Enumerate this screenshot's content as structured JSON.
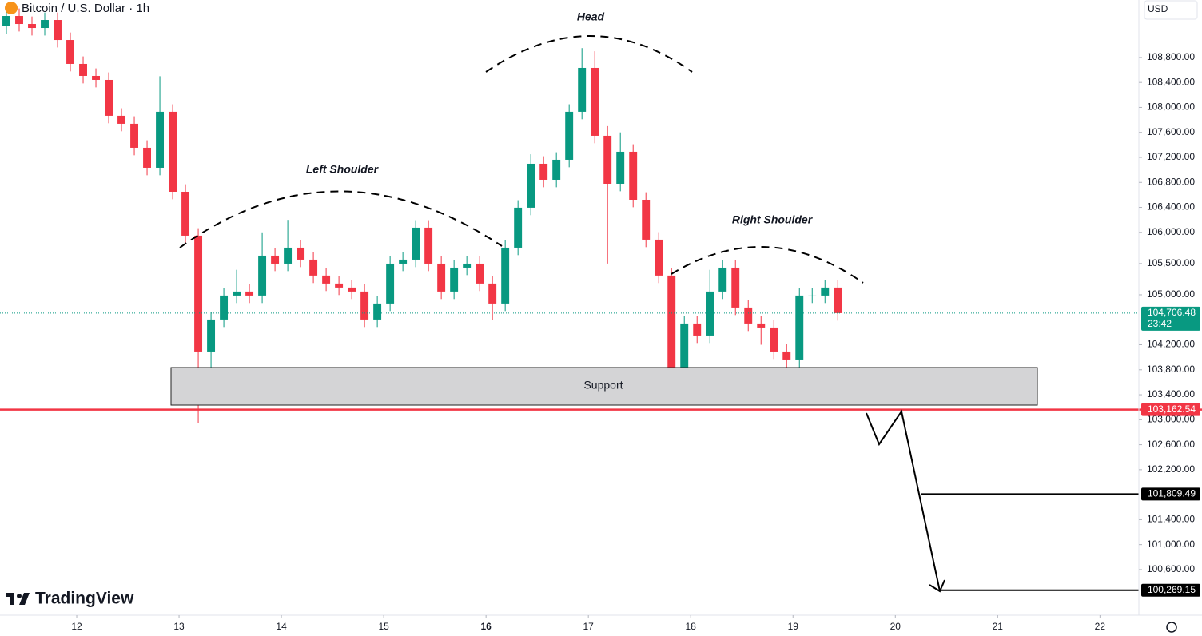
{
  "chart_data": {
    "type": "candlestick",
    "title": "Bitcoin / U.S. Dollar · 1h",
    "currency": "USD",
    "brand": "TradingView",
    "annotations": [
      "Left Shoulder",
      "Head",
      "Right Shoulder",
      "Support"
    ],
    "countdown": "23:42",
    "up_color": "#089981",
    "down_color": "#f23645",
    "x": [
      11.3125,
      11.4375,
      11.5625,
      11.6875,
      11.8125,
      11.9375,
      12.0625,
      12.1875,
      12.3125,
      12.4375,
      12.5625,
      12.6875,
      12.8125,
      12.9375,
      13.0625,
      13.1875,
      13.3125,
      13.4375,
      13.5625,
      13.6875,
      13.8125,
      13.9375,
      14.0625,
      14.1875,
      14.3125,
      14.4375,
      14.5625,
      14.6875,
      14.8125,
      14.9375,
      15.0625,
      15.1875,
      15.3125,
      15.4375,
      15.5625,
      15.6875,
      15.8125,
      15.9375,
      16.0625,
      16.1875,
      16.3125,
      16.4375,
      16.5625,
      16.6875,
      16.8125,
      16.9375,
      17.0625,
      17.1875,
      17.3125,
      17.4375,
      17.5625,
      17.6875,
      17.8125,
      17.9375,
      18.0625,
      18.1875,
      18.3125,
      18.4375,
      18.5625,
      18.6875,
      18.8125,
      18.9375,
      19.0625,
      19.1875,
      19.3125,
      19.4375
    ],
    "open": [
      109300,
      109464,
      109336,
      109272,
      109400,
      109080,
      108697,
      108505,
      108441,
      107866,
      107738,
      107354,
      107034,
      107930,
      106650,
      105947,
      104092,
      104604,
      104988,
      105052,
      104988,
      105627,
      105499,
      105755,
      105563,
      105308,
      105180,
      105116,
      105052,
      104604,
      104860,
      105499,
      105563,
      106075,
      105499,
      105052,
      105435,
      105499,
      105180,
      104860,
      105755,
      106395,
      107098,
      106842,
      107162,
      107930,
      108633,
      107546,
      106778,
      107290,
      106522,
      105883,
      105308,
      103837,
      104540,
      104348,
      105052,
      105435,
      104796,
      104540,
      104476,
      104092,
      103964,
      104988,
      104988,
      105116
    ],
    "high": [
      109584,
      109584,
      109456,
      109520,
      109520,
      109200,
      108817,
      108625,
      108561,
      107986,
      107858,
      107474,
      108500,
      108050,
      106770,
      106067,
      104724,
      105108,
      105400,
      105172,
      106000,
      105747,
      106200,
      105875,
      105683,
      105428,
      105300,
      105236,
      105172,
      104980,
      105619,
      105683,
      106195,
      106195,
      105619,
      105555,
      105619,
      105619,
      105300,
      105875,
      106515,
      107250,
      107218,
      107282,
      108050,
      108950,
      108900,
      107700,
      107600,
      107410,
      106642,
      106003,
      105428,
      104660,
      104660,
      105400,
      105555,
      105555,
      104916,
      104660,
      104596,
      104212,
      105108,
      105108,
      105236,
      105236
    ],
    "low": [
      109180,
      109216,
      109152,
      109152,
      108960,
      108577,
      108385,
      108321,
      107746,
      107618,
      107234,
      106914,
      106914,
      106530,
      105827,
      102940,
      103700,
      104484,
      104868,
      104868,
      104868,
      105379,
      105379,
      105443,
      105188,
      105060,
      104996,
      104932,
      104484,
      104484,
      104740,
      105379,
      105443,
      105379,
      104932,
      104932,
      105315,
      105060,
      104600,
      104740,
      105635,
      106275,
      106722,
      106722,
      107042,
      107810,
      107426,
      105500,
      106658,
      106402,
      105763,
      105188,
      103450,
      103717,
      104228,
      104228,
      104932,
      104676,
      104420,
      104200,
      103972,
      103550,
      103700,
      104868,
      104868,
      104586
    ],
    "close": [
      109464,
      109336,
      109272,
      109400,
      109080,
      108697,
      108505,
      108441,
      107866,
      107738,
      107354,
      107034,
      107930,
      106650,
      105947,
      104092,
      104604,
      104988,
      105052,
      104988,
      105627,
      105499,
      105755,
      105563,
      105308,
      105180,
      105116,
      105052,
      104604,
      104860,
      105499,
      105563,
      106075,
      105499,
      105052,
      105435,
      105499,
      105180,
      104860,
      105755,
      106395,
      107098,
      106842,
      107162,
      107930,
      108633,
      107546,
      106778,
      107290,
      106522,
      105883,
      105308,
      103837,
      104540,
      104348,
      105052,
      105435,
      104796,
      104540,
      104476,
      104092,
      103964,
      104988,
      104988,
      105116,
      104706.48
    ],
    "xlim": [
      11.25,
      22.38
    ],
    "xticks": [
      12,
      13,
      14,
      15,
      16,
      17,
      18,
      19,
      20,
      21,
      22
    ],
    "ylim": [
      99870,
      109720
    ],
    "yticks": [
      {
        "value": 108800,
        "label": "108,800.00"
      },
      {
        "value": 108400,
        "label": "108,400.00"
      },
      {
        "value": 108000,
        "label": "108,000.00"
      },
      {
        "value": 107600,
        "label": "107,600.00"
      },
      {
        "value": 107200,
        "label": "107,200.00"
      },
      {
        "value": 106800,
        "label": "106,800.00"
      },
      {
        "value": 106400,
        "label": "106,400.00"
      },
      {
        "value": 106000,
        "label": "106,000.00"
      },
      {
        "value": 105500,
        "label": "105,500.00"
      },
      {
        "value": 105000,
        "label": "105,000.00"
      },
      {
        "value": 104200,
        "label": "104,200.00"
      },
      {
        "value": 103800,
        "label": "103,800.00"
      },
      {
        "value": 103400,
        "label": "103,400.00"
      },
      {
        "value": 103000,
        "label": "103,000.00"
      },
      {
        "value": 102600,
        "label": "102,600.00"
      },
      {
        "value": 102200,
        "label": "102,200.00"
      },
      {
        "value": 101400,
        "label": "101,400.00"
      },
      {
        "value": 101000,
        "label": "101,000.00"
      },
      {
        "value": 100600,
        "label": "100,600.00"
      }
    ],
    "price_lines": [
      {
        "value": 104706.48,
        "label": "104,706.48",
        "color": "#089981"
      },
      {
        "value": 103162.54,
        "label": "103,162.54",
        "color": "#f23645"
      },
      {
        "value": 101809.49,
        "label": "101,809.49",
        "color": "#000000"
      },
      {
        "value": 100269.15,
        "label": "100,269.15",
        "color": "#000000"
      }
    ]
  }
}
